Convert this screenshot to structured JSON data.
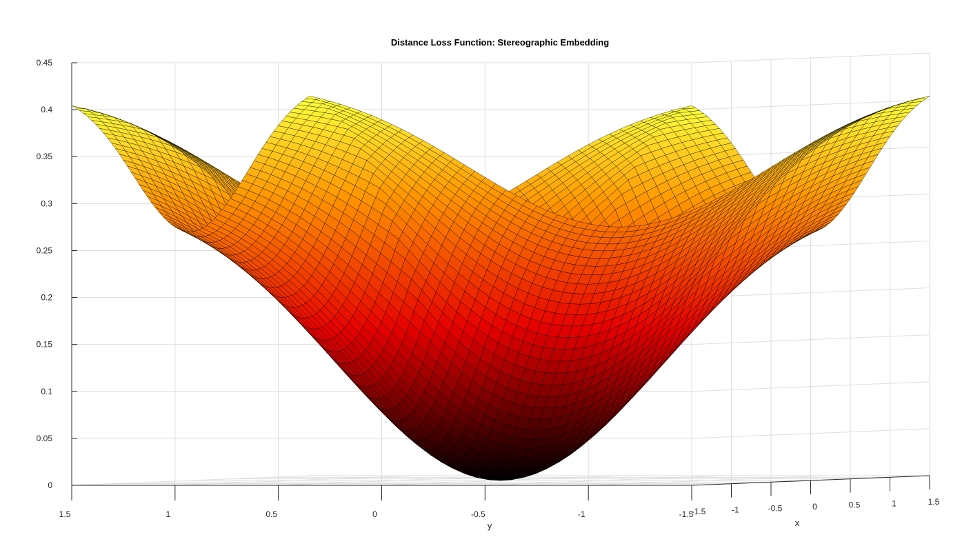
{
  "chart_data": {
    "type": "surface",
    "title": "Distance Loss Function: Stereographic Embedding",
    "xlabel": "x",
    "ylabel": "y",
    "zlabel": "",
    "x_range": [
      -1.5,
      1.5
    ],
    "y_range": [
      -1.5,
      1.5
    ],
    "zlim": [
      0,
      0.45
    ],
    "x_ticks": [
      -1.5,
      -1,
      -0.5,
      0,
      0.5,
      1,
      1.5
    ],
    "x_tick_labels": [
      "-1.5",
      "-1",
      "-0.5",
      "0",
      "0.5",
      "1",
      "1.5"
    ],
    "y_ticks": [
      1.5,
      1,
      0.5,
      0,
      -0.5,
      -1,
      -1.5
    ],
    "y_tick_labels": [
      "1.5",
      "1",
      "0.5",
      "0",
      "-0.5",
      "-1",
      "-1.5"
    ],
    "z_ticks": [
      0,
      0.05,
      0.1,
      0.15,
      0.2,
      0.25,
      0.3,
      0.35,
      0.4,
      0.45
    ],
    "z_tick_labels": [
      "0",
      "0.05",
      "0.1",
      "0.15",
      "0.2",
      "0.25",
      "0.3",
      "0.35",
      "0.4",
      "0.45"
    ],
    "grid": true,
    "colormap": "hot",
    "edge_color": "#000000",
    "minimum": {
      "x": 0,
      "y": 0,
      "z": 0
    },
    "corner_values": {
      "x=1.5,y=1.5": 0.41,
      "x=-1.5,y=-1.5": 0.41,
      "x=1.5,y=-1.5": 0.42,
      "x=-1.5,y=1.5": 0.42
    },
    "edge_midpoint_values": {
      "x=0,y=1.5": 0.37,
      "x=0,y=-1.5": 0.37,
      "x=1.5,y=0": 0.375,
      "x=-1.5,y=0": 0.375
    },
    "colors": {
      "colormap_low": "#000000",
      "colormap_mid": "#ff0000",
      "colormap_high": "#ffff00",
      "background": "#ffffff",
      "grid": "#dedede",
      "axis": "#262626"
    }
  }
}
